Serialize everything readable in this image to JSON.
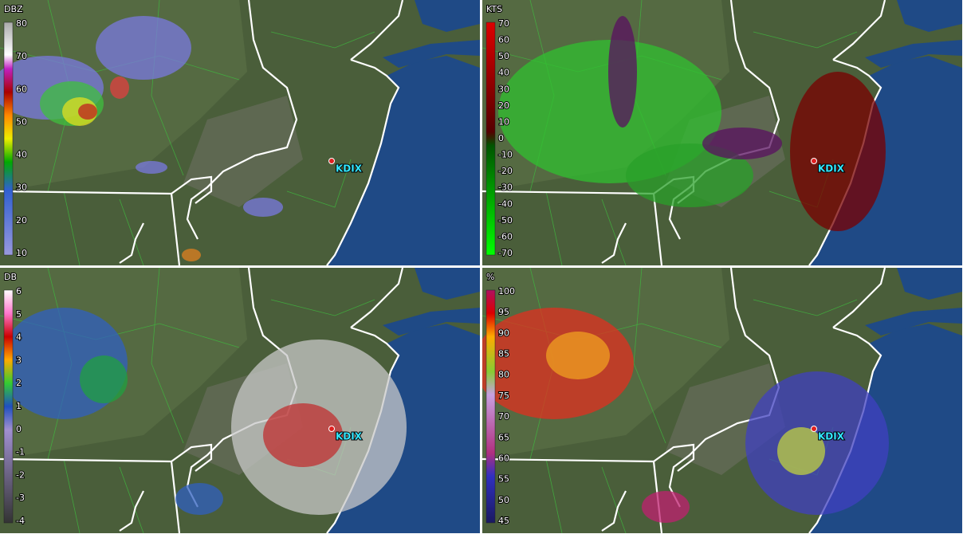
{
  "panels": [
    {
      "unit": "DBZ",
      "scale_labels": [
        "80",
        "70",
        "60",
        "50",
        "40",
        "30",
        "20",
        "10"
      ],
      "station": "KDIX"
    },
    {
      "unit": "KTS",
      "scale_labels": [
        "70",
        "60",
        "50",
        "40",
        "30",
        "20",
        "10",
        "0",
        "-10",
        "-20",
        "-30",
        "-40",
        "-50",
        "-60",
        "-70"
      ],
      "station": "KDIX"
    },
    {
      "unit": "DB",
      "scale_labels": [
        "6",
        "5",
        "4",
        "3",
        "2",
        "1",
        "0",
        "-1",
        "-2",
        "-3",
        "-4"
      ],
      "station": "KDIX"
    },
    {
      "unit": "%",
      "scale_labels": [
        "100",
        "95",
        "90",
        "85",
        "80",
        "75",
        "70",
        "65",
        "60",
        "55",
        "50",
        "45"
      ],
      "station": "KDIX"
    }
  ]
}
